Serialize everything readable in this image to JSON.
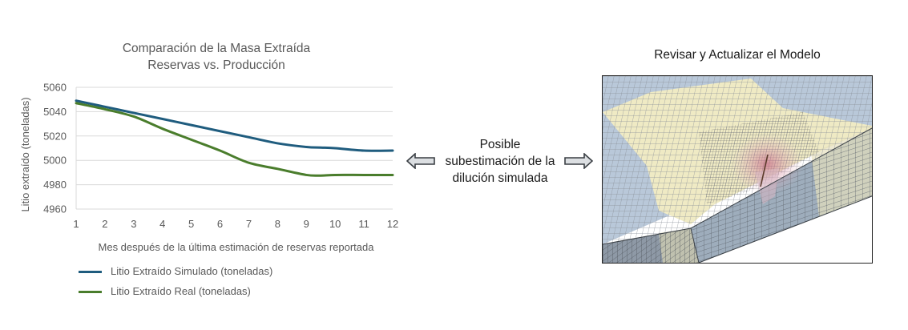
{
  "chart_title": {
    "line1": "Comparación de la Masa Extraída",
    "line2": "Reservas vs. Producción"
  },
  "chart_data": {
    "type": "line",
    "xlabel": "Mes después de la última estimación de reservas reportada",
    "ylabel": "Litio extraído (toneladas)",
    "x": [
      1,
      2,
      3,
      4,
      5,
      6,
      7,
      8,
      9,
      9.5,
      10,
      11,
      12
    ],
    "x_ticks": [
      1,
      2,
      3,
      4,
      5,
      6,
      7,
      8,
      9,
      10,
      11,
      12
    ],
    "y_ticks": [
      4960,
      4980,
      5000,
      5020,
      5040,
      5060
    ],
    "xlim": [
      1,
      12
    ],
    "ylim": [
      4960,
      5060
    ],
    "grid": "horizontal",
    "legend_position": "bottom-left",
    "series": [
      {
        "name": "Litio Extraído Simulado (toneladas)",
        "color": "#1f5c7e",
        "values": [
          5049,
          5044,
          5039,
          5034,
          5029,
          5024,
          5019,
          5014,
          5011,
          5010.5,
          5010,
          5008,
          5008
        ]
      },
      {
        "name": "Litio Extraído Real (toneladas)",
        "color": "#4a7d2c",
        "values": [
          5047,
          5042,
          5036,
          5026,
          5017,
          5008,
          4998,
          4993,
          4988,
          4987.5,
          4988,
          4988,
          4988
        ]
      }
    ]
  },
  "center_label": {
    "line1": "Posible",
    "line2": "subestimación de la",
    "line3": "dilución simulada"
  },
  "model": {
    "title": "Revisar y Actualizar el Modelo",
    "icon": "3d-block-model-image"
  },
  "colors": {
    "text": "#595959",
    "grid": "#d9d9d9",
    "arrow_fill": "#dcdfe2",
    "arrow_stroke": "#3a3f44"
  }
}
